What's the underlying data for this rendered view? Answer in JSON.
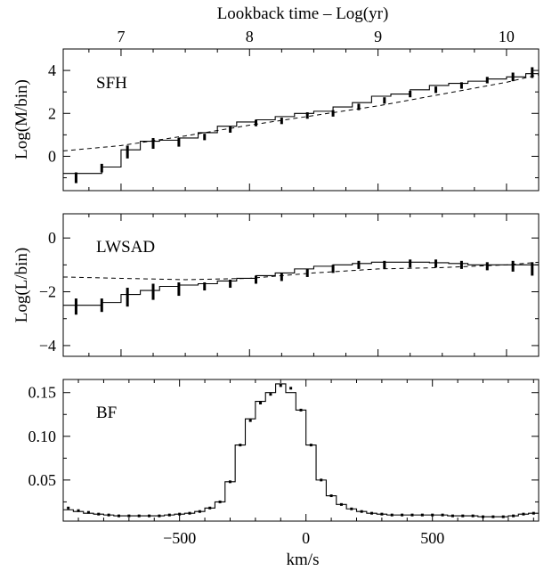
{
  "chart_data": [
    {
      "type": "line",
      "panel_label": "SFH",
      "xlabel_top": "Lookback time – Log(yr)",
      "ylabel": "Log(M/bin)",
      "xlim": [
        6.55,
        10.25
      ],
      "ylim": [
        -1.6,
        5.0
      ],
      "x_ticks": [
        7,
        8,
        9,
        10
      ],
      "y_ticks": [
        0,
        2,
        4
      ],
      "grid": false,
      "series": [
        {
          "style": "step-solid",
          "x": [
            6.55,
            6.7,
            6.85,
            7.0,
            7.15,
            7.3,
            7.45,
            7.6,
            7.75,
            7.9,
            8.05,
            8.2,
            8.35,
            8.5,
            8.65,
            8.8,
            8.95,
            9.1,
            9.25,
            9.4,
            9.55,
            9.7,
            9.85,
            10.0,
            10.15,
            10.25
          ],
          "y": [
            -0.8,
            -0.8,
            -0.5,
            0.3,
            0.7,
            0.75,
            0.85,
            1.1,
            1.4,
            1.6,
            1.7,
            1.85,
            2.0,
            2.1,
            2.3,
            2.5,
            2.8,
            2.9,
            3.1,
            3.3,
            3.4,
            3.5,
            3.6,
            3.7,
            3.85,
            4.0
          ]
        },
        {
          "style": "dashed",
          "x": [
            6.55,
            7.0,
            7.5,
            8.0,
            8.5,
            9.0,
            9.5,
            10.0,
            10.25
          ],
          "y": [
            0.25,
            0.5,
            0.95,
            1.45,
            1.9,
            2.35,
            2.9,
            3.45,
            3.8
          ]
        },
        {
          "style": "error-bars",
          "x": [
            6.65,
            6.85,
            7.05,
            7.25,
            7.45,
            7.65,
            7.85,
            8.05,
            8.25,
            8.45,
            8.65,
            8.85,
            9.05,
            9.25,
            9.45,
            9.65,
            9.85,
            10.05,
            10.2
          ],
          "y": [
            -1.0,
            -0.55,
            0.2,
            0.6,
            0.65,
            0.9,
            1.25,
            1.55,
            1.65,
            1.9,
            2.0,
            2.3,
            2.6,
            2.9,
            3.1,
            3.3,
            3.55,
            3.7,
            3.9
          ],
          "err": [
            0.25,
            0.2,
            0.3,
            0.25,
            0.2,
            0.15,
            0.15,
            0.15,
            0.15,
            0.15,
            0.15,
            0.15,
            0.15,
            0.15,
            0.15,
            0.15,
            0.15,
            0.2,
            0.25
          ]
        }
      ]
    },
    {
      "type": "line",
      "panel_label": "LWSAD",
      "ylabel": "Log(L/bin)",
      "xlim": [
        6.55,
        10.25
      ],
      "ylim": [
        -4.4,
        0.9
      ],
      "x_ticks": [
        7,
        8,
        9,
        10
      ],
      "y_ticks": [
        -4,
        -2,
        0
      ],
      "grid": false,
      "series": [
        {
          "style": "step-solid",
          "x": [
            6.55,
            6.7,
            6.85,
            7.0,
            7.15,
            7.3,
            7.45,
            7.6,
            7.75,
            7.9,
            8.05,
            8.2,
            8.35,
            8.5,
            8.65,
            8.8,
            8.95,
            9.1,
            9.25,
            9.4,
            9.55,
            9.7,
            9.85,
            10.0,
            10.15,
            10.25
          ],
          "y": [
            -2.5,
            -2.5,
            -2.4,
            -2.1,
            -1.95,
            -1.8,
            -1.75,
            -1.7,
            -1.6,
            -1.5,
            -1.4,
            -1.3,
            -1.15,
            -1.05,
            -1.0,
            -0.95,
            -0.9,
            -0.9,
            -0.9,
            -0.92,
            -0.95,
            -1.0,
            -1.0,
            -1.0,
            -1.0,
            -1.0
          ]
        },
        {
          "style": "dashed",
          "x": [
            6.55,
            7.0,
            7.5,
            8.0,
            8.5,
            9.0,
            9.5,
            10.0,
            10.25
          ],
          "y": [
            -1.45,
            -1.5,
            -1.55,
            -1.5,
            -1.3,
            -1.15,
            -1.1,
            -1.0,
            -0.9
          ]
        },
        {
          "style": "error-bars",
          "x": [
            6.65,
            6.85,
            7.05,
            7.25,
            7.45,
            7.65,
            7.85,
            8.05,
            8.25,
            8.45,
            8.65,
            8.85,
            9.05,
            9.25,
            9.45,
            9.65,
            9.85,
            10.05,
            10.2
          ],
          "y": [
            -2.55,
            -2.5,
            -2.2,
            -2.0,
            -1.9,
            -1.8,
            -1.7,
            -1.55,
            -1.45,
            -1.3,
            -1.15,
            -1.0,
            -1.0,
            -0.95,
            -0.95,
            -1.0,
            -1.05,
            -1.05,
            -1.15
          ],
          "err": [
            0.3,
            0.25,
            0.35,
            0.3,
            0.25,
            0.15,
            0.15,
            0.15,
            0.15,
            0.15,
            0.15,
            0.15,
            0.15,
            0.15,
            0.15,
            0.15,
            0.15,
            0.2,
            0.25
          ]
        }
      ]
    },
    {
      "type": "line",
      "panel_label": "BF",
      "xlabel": "km/s",
      "xlim": [
        -960,
        920
      ],
      "ylim": [
        0.003,
        0.165
      ],
      "x_ticks": [
        -500,
        0,
        500
      ],
      "y_ticks": [
        0.05,
        0.1,
        0.15
      ],
      "y_tick_labels": [
        "0.05",
        "0.10",
        "0.15"
      ],
      "grid": false,
      "series": [
        {
          "style": "step-solid",
          "x": [
            -960,
            -920,
            -880,
            -840,
            -800,
            -760,
            -720,
            -680,
            -640,
            -600,
            -560,
            -520,
            -480,
            -440,
            -400,
            -360,
            -320,
            -280,
            -240,
            -200,
            -160,
            -120,
            -80,
            -40,
            0,
            40,
            80,
            120,
            160,
            200,
            240,
            280,
            320,
            360,
            400,
            440,
            480,
            520,
            560,
            600,
            640,
            680,
            720,
            760,
            800,
            840,
            880,
            920
          ],
          "y": [
            0.016,
            0.014,
            0.012,
            0.011,
            0.01,
            0.009,
            0.009,
            0.009,
            0.009,
            0.009,
            0.01,
            0.011,
            0.012,
            0.014,
            0.018,
            0.025,
            0.048,
            0.09,
            0.12,
            0.14,
            0.15,
            0.16,
            0.15,
            0.13,
            0.09,
            0.05,
            0.032,
            0.022,
            0.017,
            0.014,
            0.012,
            0.011,
            0.01,
            0.01,
            0.01,
            0.01,
            0.01,
            0.01,
            0.009,
            0.009,
            0.009,
            0.008,
            0.008,
            0.008,
            0.009,
            0.011,
            0.012,
            0.012
          ]
        },
        {
          "style": "points",
          "x": [
            -940,
            -900,
            -860,
            -820,
            -780,
            -740,
            -700,
            -660,
            -620,
            -580,
            -540,
            -500,
            -460,
            -420,
            -380,
            -340,
            -300,
            -260,
            -220,
            -180,
            -140,
            -100,
            -60,
            -20,
            20,
            60,
            100,
            140,
            180,
            220,
            260,
            300,
            340,
            380,
            420,
            460,
            500,
            540,
            580,
            620,
            660,
            700,
            740,
            780,
            820,
            860,
            900
          ],
          "y": [
            0.018,
            0.015,
            0.013,
            0.011,
            0.01,
            0.009,
            0.009,
            0.009,
            0.009,
            0.009,
            0.01,
            0.011,
            0.012,
            0.014,
            0.018,
            0.025,
            0.048,
            0.09,
            0.118,
            0.138,
            0.148,
            0.158,
            0.155,
            0.13,
            0.09,
            0.05,
            0.032,
            0.022,
            0.017,
            0.014,
            0.012,
            0.011,
            0.01,
            0.01,
            0.01,
            0.01,
            0.01,
            0.01,
            0.009,
            0.009,
            0.009,
            0.008,
            0.008,
            0.008,
            0.009,
            0.011,
            0.012
          ]
        }
      ]
    }
  ]
}
